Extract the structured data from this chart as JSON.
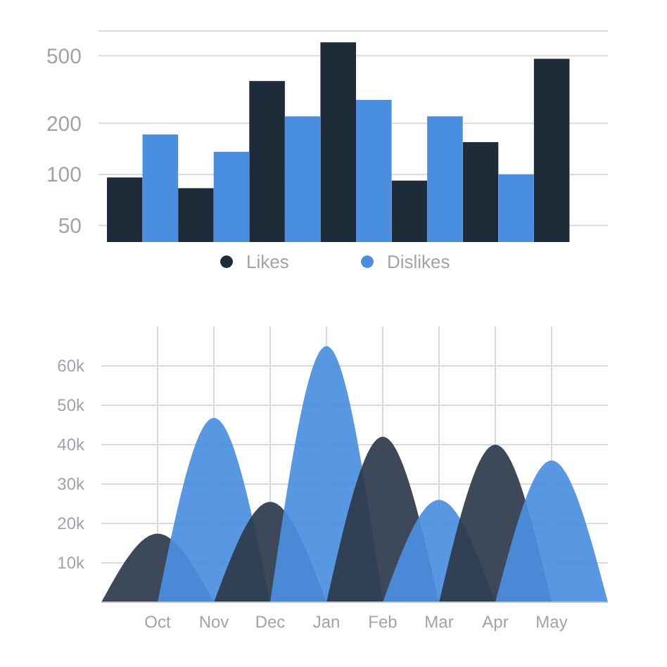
{
  "chart_data": [
    {
      "type": "bar",
      "categories": [
        null,
        null,
        null,
        null,
        null,
        null,
        null
      ],
      "series": [
        {
          "name": "Likes",
          "color": "#1e2b38",
          "values": [
            96,
            83,
            355,
            600,
            92,
            155,
            480
          ]
        },
        {
          "name": "Dislikes",
          "color": "#4a8fdf",
          "values": [
            172,
            136,
            220,
            275,
            220,
            100,
            null
          ]
        }
      ],
      "log": true,
      "ylim": [
        40,
        700
      ],
      "yticks": [
        50,
        100,
        200,
        500
      ],
      "grid": "y",
      "legend": "bottom"
    },
    {
      "type": "area",
      "categories": [
        null,
        "Oct",
        "Nov",
        "Dec",
        "Jan",
        "Feb",
        "Mar",
        "Apr",
        "May",
        null
      ],
      "series": [
        {
          "color": "#2c3a4a",
          "values": [
            0,
            17400,
            0,
            null,
            null,
            null,
            null,
            null,
            null,
            null
          ]
        },
        {
          "color": "#4a8fdf",
          "values": [
            null,
            0,
            46800,
            0,
            null,
            null,
            null,
            null,
            null,
            null
          ]
        },
        {
          "color": "#2c3a4a",
          "values": [
            null,
            null,
            0,
            25500,
            0,
            null,
            null,
            null,
            null,
            null
          ]
        },
        {
          "color": "#4a8fdf",
          "values": [
            null,
            null,
            null,
            0,
            65000,
            0,
            null,
            null,
            null,
            null
          ]
        },
        {
          "color": "#2c3a4a",
          "values": [
            null,
            null,
            null,
            null,
            0,
            42000,
            0,
            null,
            null,
            null
          ]
        },
        {
          "color": "#4a8fdf",
          "values": [
            null,
            null,
            null,
            null,
            null,
            0,
            26000,
            0,
            null,
            null
          ]
        },
        {
          "color": "#2c3a4a",
          "values": [
            null,
            null,
            null,
            null,
            null,
            null,
            0,
            40000,
            0,
            null
          ]
        },
        {
          "color": "#4a8fdf",
          "values": [
            null,
            null,
            null,
            null,
            null,
            null,
            null,
            0,
            36000,
            0
          ]
        }
      ],
      "ylim": [
        0,
        70000
      ],
      "yticks": [
        {
          "value": 10000,
          "label": "10k"
        },
        {
          "value": 20000,
          "label": "20k"
        },
        {
          "value": 30000,
          "label": "30k"
        },
        {
          "value": 40000,
          "label": "40k"
        },
        {
          "value": 50000,
          "label": "50k"
        },
        {
          "value": 60000,
          "label": "60k"
        }
      ],
      "grid": true
    }
  ]
}
